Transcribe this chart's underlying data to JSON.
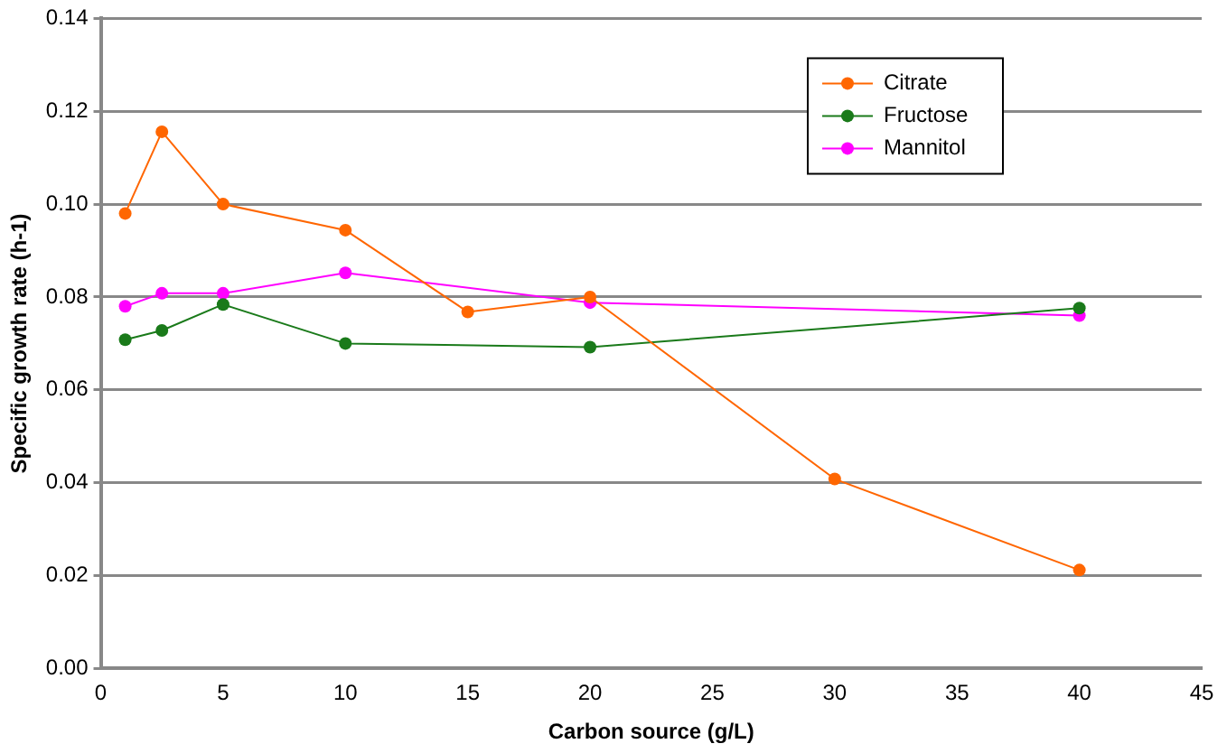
{
  "chart_data": {
    "type": "line",
    "xlabel": "Carbon source (g/L)",
    "ylabel": "Specific growth rate (h-1)",
    "xlim": [
      0,
      45
    ],
    "xticks": [
      0,
      5,
      10,
      15,
      20,
      25,
      30,
      35,
      40,
      45
    ],
    "ylim": [
      0,
      0.14
    ],
    "yticks": [
      {
        "value": 0,
        "label": "0.00"
      },
      {
        "value": 0.02,
        "label": "0.02"
      },
      {
        "value": 0.04,
        "label": "0.04"
      },
      {
        "value": 0.06,
        "label": "0.06"
      },
      {
        "value": 0.08,
        "label": "0.08"
      },
      {
        "value": 0.1,
        "label": "0.10"
      },
      {
        "value": 0.12,
        "label": "0.12"
      },
      {
        "value": 0.14,
        "label": "0.14"
      }
    ],
    "grid": "y",
    "legend": "top right",
    "marker": "circle",
    "line_style": "solid",
    "series": [
      {
        "name": "Citrate",
        "color": "#ff6600",
        "x": [
          1,
          2.5,
          5,
          10,
          15,
          20,
          30,
          40
        ],
        "values": [
          0.098,
          0.1156,
          0.1,
          0.0944,
          0.0768,
          0.08,
          0.0408,
          0.0212
        ]
      },
      {
        "name": "Fructose",
        "color": "#1a7a1a",
        "x": [
          1,
          2.5,
          5,
          10,
          20,
          40
        ],
        "values": [
          0.0708,
          0.0728,
          0.0784,
          0.07,
          0.0692,
          0.0776
        ]
      },
      {
        "name": "Mannitol",
        "color": "#ff00ff",
        "x": [
          1,
          2.5,
          5,
          10,
          20,
          40
        ],
        "values": [
          0.078,
          0.0808,
          0.0808,
          0.0852,
          0.0788,
          0.076
        ]
      }
    ]
  }
}
